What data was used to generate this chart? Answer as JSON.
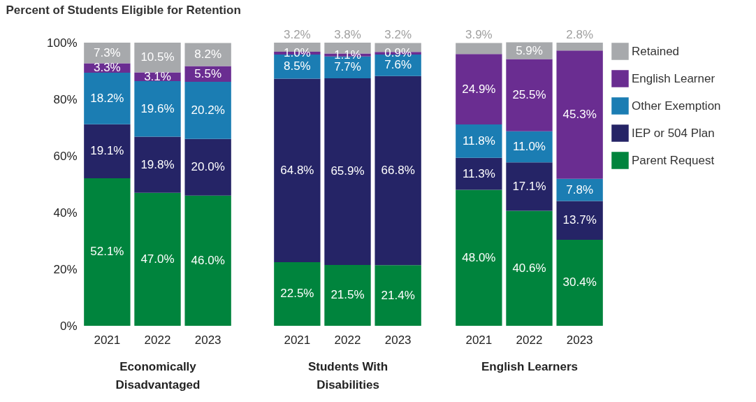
{
  "chart_data": [
    {
      "type": "bar",
      "title": "Percent of Students Eligible for Retention",
      "xlabel": "Economically Disadvantaged",
      "categories": [
        "2021",
        "2022",
        "2023"
      ],
      "stacked": true,
      "legend": "right",
      "ylim": [
        0,
        100
      ],
      "yticks": [
        {
          "value": 0,
          "label": "0%"
        },
        {
          "value": 20,
          "label": "20%"
        },
        {
          "value": 40,
          "label": "40%"
        },
        {
          "value": 60,
          "label": "60%"
        },
        {
          "value": 80,
          "label": "80%"
        },
        {
          "value": 100,
          "label": "100%"
        }
      ],
      "series": [
        {
          "name": "Parent Request",
          "color": "#00843d",
          "values": [
            52.1,
            47.0,
            46.0
          ],
          "value_labels": [
            "52.1%",
            "47.0%",
            "46.0%"
          ]
        },
        {
          "name": "IEP or 504 Plan",
          "color": "#252466",
          "values": [
            19.1,
            19.8,
            20.0
          ],
          "value_labels": [
            "19.1%",
            "19.8%",
            "20.0%"
          ]
        },
        {
          "name": "Other Exemption",
          "color": "#1b7db3",
          "values": [
            18.2,
            19.6,
            20.2
          ],
          "value_labels": [
            "18.2%",
            "19.6%",
            "20.2%"
          ]
        },
        {
          "name": "English Learner",
          "color": "#6a2d91",
          "values": [
            3.3,
            3.1,
            5.5
          ],
          "value_labels": [
            "3.3%",
            "3.1%",
            "5.5%"
          ]
        },
        {
          "name": "Retained",
          "color": "#a7a9ac",
          "values": [
            7.3,
            10.5,
            8.2
          ],
          "value_labels": [
            "7.3%",
            "10.5%",
            "8.2%"
          ]
        }
      ]
    },
    {
      "type": "bar",
      "xlabel": "Students With Disabilities",
      "categories": [
        "2021",
        "2022",
        "2023"
      ],
      "stacked": true,
      "legend": "right",
      "tick_labels": "x",
      "ylim": [
        0,
        100
      ],
      "series": [
        {
          "name": "Parent Request",
          "color": "#00843d",
          "values": [
            22.5,
            21.5,
            21.4
          ],
          "value_labels": [
            "22.5%",
            "21.5%",
            "21.4%"
          ]
        },
        {
          "name": "IEP or 504 Plan",
          "color": "#252466",
          "values": [
            64.8,
            65.9,
            66.8
          ],
          "value_labels": [
            "64.8%",
            "65.9%",
            "66.8%"
          ]
        },
        {
          "name": "Other Exemption",
          "color": "#1b7db3",
          "values": [
            8.5,
            7.7,
            7.6
          ],
          "value_labels": [
            "8.5%",
            "7.7%",
            "7.6%"
          ]
        },
        {
          "name": "English Learner",
          "color": "#6a2d91",
          "values": [
            1.0,
            1.1,
            0.9
          ],
          "value_labels": [
            "1.0%",
            "1.1%",
            "0.9%"
          ]
        },
        {
          "name": "Retained",
          "color": "#a7a9ac",
          "values": [
            3.2,
            3.8,
            3.2
          ],
          "value_labels": [
            "3.2%",
            "3.8%",
            "3.2%"
          ]
        }
      ]
    },
    {
      "type": "bar",
      "xlabel": "English Learners",
      "categories": [
        "2021",
        "2022",
        "2023"
      ],
      "stacked": true,
      "tick_labels": "x",
      "ylim": [
        0,
        100
      ],
      "legend": "right",
      "series": [
        {
          "name": "Parent Request",
          "color": "#00843d",
          "values": [
            48.0,
            40.6,
            30.4
          ],
          "value_labels": [
            "48.0%",
            "40.6%",
            "30.4%"
          ]
        },
        {
          "name": "IEP or 504 Plan",
          "color": "#252466",
          "values": [
            11.3,
            17.1,
            13.7
          ],
          "value_labels": [
            "11.3%",
            "17.1%",
            "13.7%"
          ]
        },
        {
          "name": "Other Exemption",
          "color": "#1b7db3",
          "values": [
            11.8,
            11.0,
            7.8
          ],
          "value_labels": [
            "11.8%",
            "11.0%",
            "7.8%"
          ]
        },
        {
          "name": "English Learner",
          "color": "#6a2d91",
          "values": [
            24.9,
            25.5,
            45.3
          ],
          "value_labels": [
            "24.9%",
            "25.5%",
            "45.3%"
          ]
        },
        {
          "name": "Retained",
          "color": "#a7a9ac",
          "values": [
            3.9,
            5.9,
            2.8
          ],
          "value_labels": [
            "3.9%",
            "5.9%",
            "2.8%"
          ]
        }
      ]
    }
  ]
}
